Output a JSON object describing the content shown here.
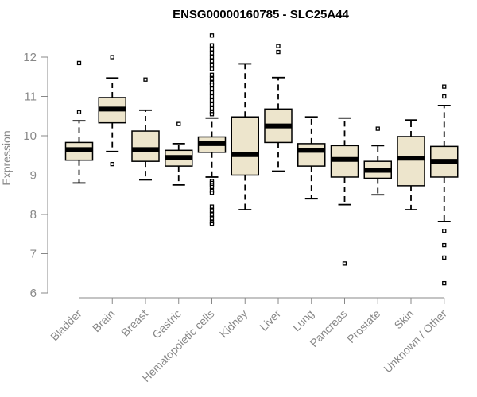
{
  "chart_data": {
    "type": "box",
    "title": "ENSG00000160785 - SLC25A44",
    "xlabel": "",
    "ylabel": "Expression",
    "ylim": [
      6,
      12.5
    ],
    "yticks": [
      6,
      7,
      8,
      9,
      10,
      11,
      12
    ],
    "grid": false,
    "box_color": "#ede5cc",
    "categories": [
      "Bladder",
      "Brain",
      "Breast",
      "Gastric",
      "Hematopoietic cells",
      "Kidney",
      "Liver",
      "Lung",
      "Pancreas",
      "Prostate",
      "Skin",
      "Unknown / Other"
    ],
    "boxes": [
      {
        "name": "Bladder",
        "whisker_low": 8.8,
        "q1": 9.38,
        "median": 9.65,
        "q3": 9.83,
        "whisker_high": 10.38,
        "outliers": [
          11.85,
          10.6
        ]
      },
      {
        "name": "Brain",
        "whisker_low": 9.6,
        "q1": 10.33,
        "median": 10.68,
        "q3": 10.97,
        "whisker_high": 11.47,
        "outliers": [
          12.0,
          9.28
        ]
      },
      {
        "name": "Breast",
        "whisker_low": 8.88,
        "q1": 9.35,
        "median": 9.65,
        "q3": 10.12,
        "whisker_high": 10.65,
        "outliers": [
          11.43
        ]
      },
      {
        "name": "Gastric",
        "whisker_low": 8.75,
        "q1": 9.23,
        "median": 9.45,
        "q3": 9.63,
        "whisker_high": 9.8,
        "outliers": [
          10.3
        ]
      },
      {
        "name": "Hematopoietic cells",
        "whisker_low": 8.95,
        "q1": 9.58,
        "median": 9.8,
        "q3": 9.97,
        "whisker_high": 10.45,
        "outliers": [
          12.55,
          12.3,
          12.2,
          12.1,
          12.0,
          11.9,
          11.8,
          11.7,
          11.55,
          11.45,
          11.35,
          11.3,
          11.2,
          11.1,
          11.0,
          10.9,
          10.8,
          10.7,
          10.6,
          10.55,
          8.85,
          8.8,
          8.75,
          8.7,
          8.6,
          8.55,
          8.2,
          8.1,
          8.0,
          7.9,
          7.8,
          7.75
        ]
      },
      {
        "name": "Kidney",
        "whisker_low": 8.12,
        "q1": 9.0,
        "median": 9.52,
        "q3": 10.48,
        "whisker_high": 11.83,
        "outliers": []
      },
      {
        "name": "Liver",
        "whisker_low": 9.1,
        "q1": 9.83,
        "median": 10.25,
        "q3": 10.68,
        "whisker_high": 11.48,
        "outliers": [
          12.28,
          12.13
        ]
      },
      {
        "name": "Lung",
        "whisker_low": 8.4,
        "q1": 9.23,
        "median": 9.63,
        "q3": 9.8,
        "whisker_high": 10.48,
        "outliers": []
      },
      {
        "name": "Pancreas",
        "whisker_low": 8.25,
        "q1": 8.95,
        "median": 9.4,
        "q3": 9.75,
        "whisker_high": 10.45,
        "outliers": [
          6.75
        ]
      },
      {
        "name": "Prostate",
        "whisker_low": 8.5,
        "q1": 8.92,
        "median": 9.12,
        "q3": 9.35,
        "whisker_high": 9.75,
        "outliers": [
          10.18
        ]
      },
      {
        "name": "Skin",
        "whisker_low": 8.12,
        "q1": 8.73,
        "median": 9.43,
        "q3": 9.98,
        "whisker_high": 10.4,
        "outliers": []
      },
      {
        "name": "Unknown / Other",
        "whisker_low": 7.82,
        "q1": 8.95,
        "median": 9.35,
        "q3": 9.73,
        "whisker_high": 10.77,
        "outliers": [
          11.25,
          11.0,
          7.58,
          7.22,
          6.9,
          6.25
        ]
      }
    ]
  }
}
